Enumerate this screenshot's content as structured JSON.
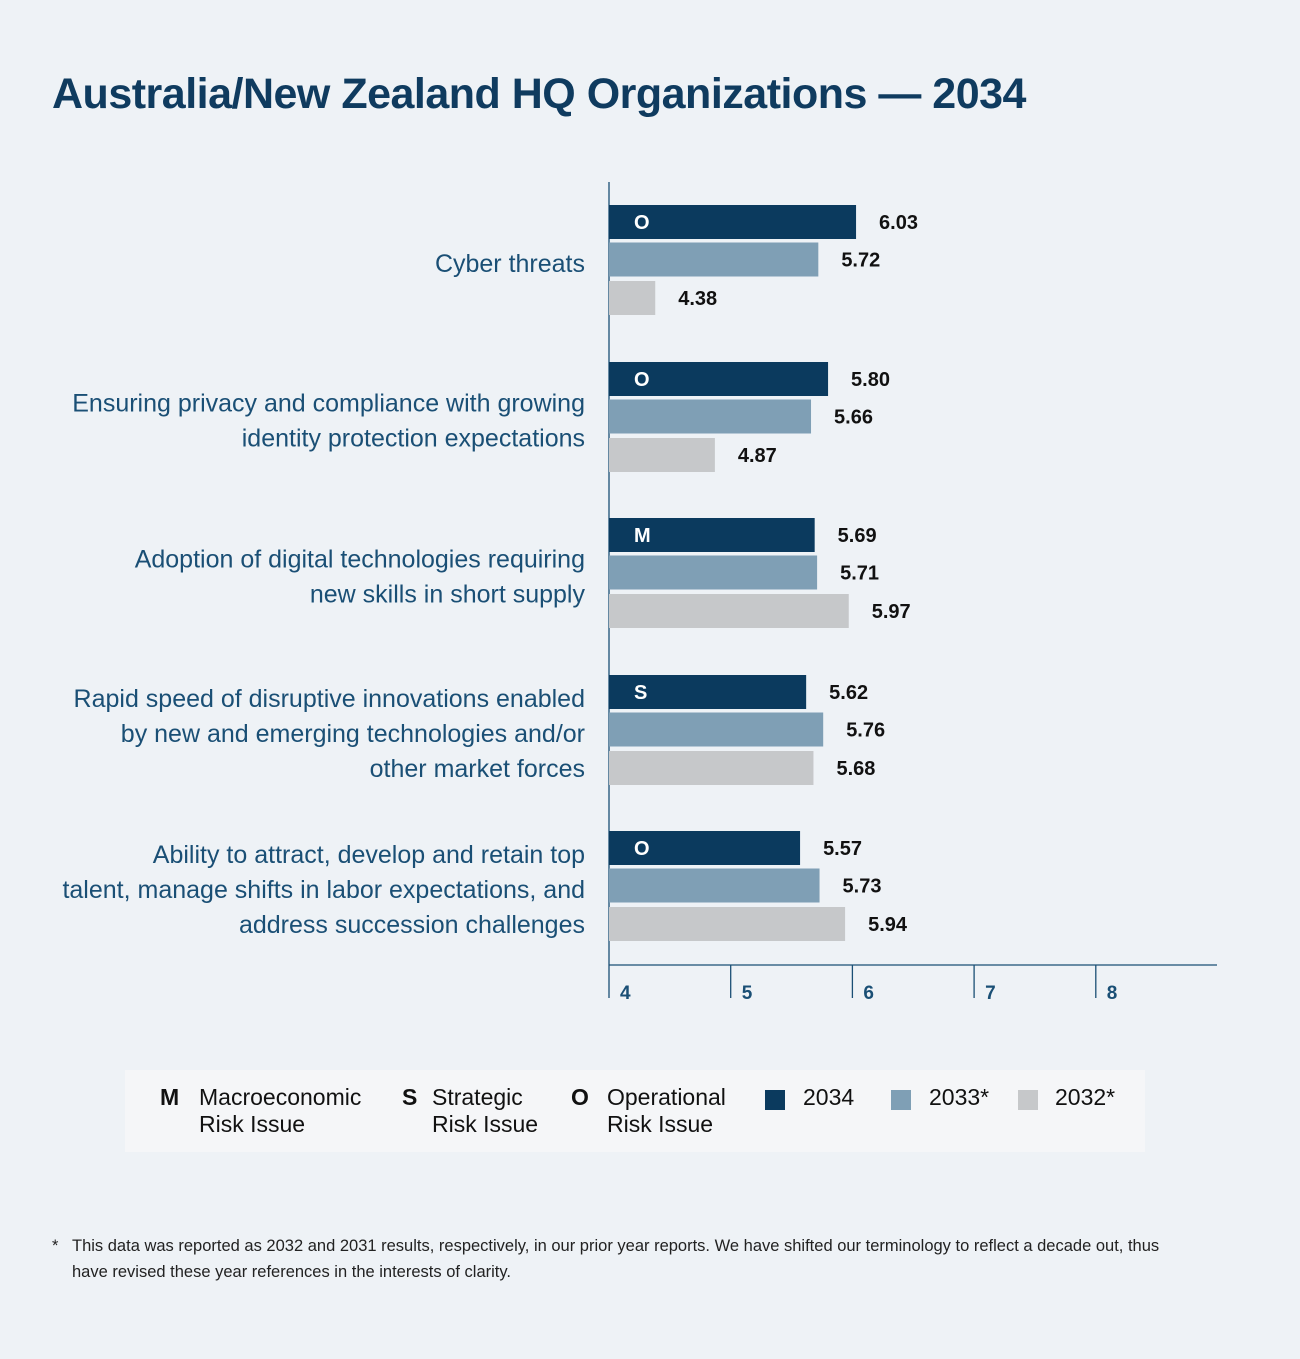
{
  "title": "Australia/New Zealand HQ Organizations — 2034",
  "chart_data": {
    "type": "bar",
    "orientation": "horizontal",
    "title": "Australia/New Zealand HQ Organizations — 2034",
    "categories": [
      "Cyber threats",
      "Ensuring privacy and compliance with growing identity protection expectations",
      "Adoption of digital technologies requiring new skills in short supply",
      "Rapid speed of disruptive innovations enabled by new and emerging technologies and/or other market forces",
      "Ability to attract, develop and retain top talent, manage shifts in labor expectations, and address succession challenges"
    ],
    "category_lines": [
      [
        "Cyber threats"
      ],
      [
        "Ensuring privacy and compliance with growing",
        "identity protection expectations"
      ],
      [
        "Adoption of digital technologies requiring",
        "new skills in short supply"
      ],
      [
        "Rapid speed of disruptive innovations enabled",
        "by new and emerging technologies and/or",
        "other market forces"
      ],
      [
        "Ability to attract, develop and retain top",
        "talent, manage shifts in labor expectations, and",
        "address succession challenges"
      ]
    ],
    "risk_type": [
      "O",
      "O",
      "M",
      "S",
      "O"
    ],
    "series": [
      {
        "name": "2034",
        "values": [
          6.03,
          5.8,
          5.69,
          5.62,
          5.57
        ],
        "labels": [
          "6.03",
          "5.80",
          "5.69",
          "5.62",
          "5.57"
        ]
      },
      {
        "name": "2033*",
        "values": [
          5.72,
          5.66,
          5.71,
          5.76,
          5.73
        ],
        "labels": [
          "5.72",
          "5.66",
          "5.71",
          "5.76",
          "5.73"
        ]
      },
      {
        "name": "2032*",
        "values": [
          4.38,
          4.87,
          5.97,
          5.68,
          5.94
        ],
        "labels": [
          "4.38",
          "4.87",
          "5.97",
          "5.68",
          "5.94"
        ]
      }
    ],
    "xlim": [
      4,
      9
    ],
    "xticks": [
      "4",
      "5",
      "6",
      "7",
      "8"
    ],
    "colors": [
      "#0b3a5e",
      "#7f9fb5",
      "#c6c8ca"
    ],
    "axis_color": "#1a4f75",
    "label_color": "#1a4f75",
    "grid": false,
    "legend_position": "bottom"
  },
  "legend": {
    "types": [
      {
        "letter": "M",
        "line1": "Macroeconomic",
        "line2": "Risk Issue"
      },
      {
        "letter": "S",
        "line1": "Strategic",
        "line2": "Risk Issue"
      },
      {
        "letter": "O",
        "line1": "Operational",
        "line2": "Risk Issue"
      }
    ],
    "years": [
      {
        "label": "2034",
        "color": "#0b3a5e"
      },
      {
        "label": "2033*",
        "color": "#7f9fb5"
      },
      {
        "label": "2032*",
        "color": "#c6c8ca"
      }
    ]
  },
  "footnote": {
    "star": "*",
    "text": "This data was reported as 2032 and 2031 results, respectively, in our prior year reports. We have shifted our terminology to reflect a decade out, thus have revised these year references in the interests of clarity."
  }
}
